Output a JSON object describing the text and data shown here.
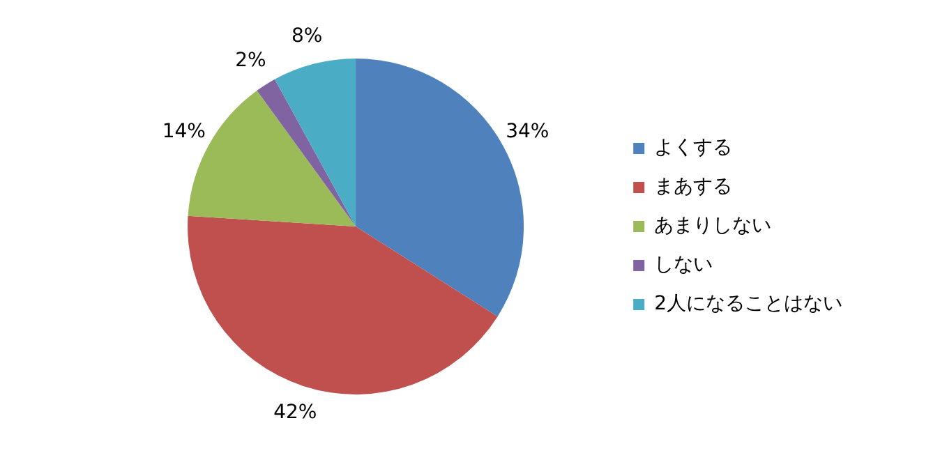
{
  "chart_data": {
    "type": "pie",
    "categories": [
      "よくする",
      "まあする",
      "あまりしない",
      "しない",
      "2人になることはない"
    ],
    "values": [
      34,
      42,
      14,
      2,
      8
    ],
    "colors": [
      "#4f81bd",
      "#c0504d",
      "#9bbb59",
      "#8064a2",
      "#4bacc6"
    ],
    "value_labels": [
      "34%",
      "42%",
      "14%",
      "2%",
      "8%"
    ],
    "legend": "right"
  }
}
